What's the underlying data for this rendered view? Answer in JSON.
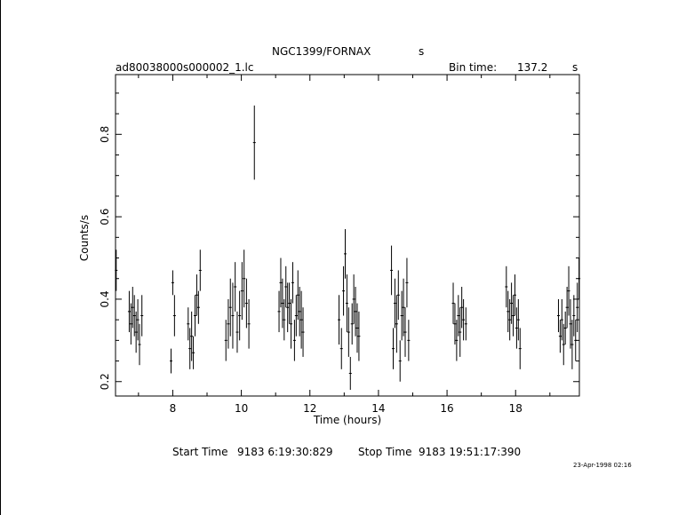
{
  "header": {
    "object": "NGC1399/FORNAX",
    "object_suffix": "s",
    "filename": "ad80038000s000002_1.lc",
    "bin_label": "Bin time:",
    "bin_value": "137.2",
    "bin_unit": "s"
  },
  "footer": {
    "start_label": "Start Time",
    "start_value": "9183  6:19:30:829",
    "stop_label": "Stop Time",
    "stop_value": "9183 19:51:17:390",
    "timestamp": "23-Apr-1998 02:16"
  },
  "chart_data": {
    "type": "scatter",
    "xlabel": "Time (hours)",
    "ylabel": "Counts/s",
    "xlim": [
      6.33,
      19.86
    ],
    "ylim": [
      0.165,
      0.945
    ],
    "xticks": [
      8,
      10,
      12,
      14,
      16,
      18
    ],
    "yticks": [
      0.2,
      0.4,
      0.6,
      0.8
    ],
    "error_bars": true,
    "series": [
      {
        "points": [
          [
            6.35,
            0.47,
            0.05
          ],
          [
            6.73,
            0.37,
            0.05
          ],
          [
            6.78,
            0.34,
            0.05
          ],
          [
            6.83,
            0.38,
            0.05
          ],
          [
            6.88,
            0.36,
            0.05
          ],
          [
            6.93,
            0.32,
            0.05
          ],
          [
            6.98,
            0.35,
            0.05
          ],
          [
            7.03,
            0.29,
            0.05
          ],
          [
            7.1,
            0.36,
            0.05
          ],
          [
            7.95,
            0.25,
            0.03
          ],
          [
            8.0,
            0.44,
            0.03
          ],
          [
            8.05,
            0.36,
            0.05
          ],
          [
            8.45,
            0.34,
            0.04
          ],
          [
            8.5,
            0.28,
            0.05
          ],
          [
            8.55,
            0.31,
            0.06
          ],
          [
            8.6,
            0.27,
            0.04
          ],
          [
            8.65,
            0.36,
            0.05
          ],
          [
            8.7,
            0.41,
            0.05
          ],
          [
            8.75,
            0.38,
            0.04
          ],
          [
            8.8,
            0.47,
            0.05
          ],
          [
            9.55,
            0.3,
            0.05
          ],
          [
            9.62,
            0.34,
            0.06
          ],
          [
            9.68,
            0.38,
            0.07
          ],
          [
            9.75,
            0.36,
            0.08
          ],
          [
            9.82,
            0.43,
            0.06
          ],
          [
            9.88,
            0.32,
            0.05
          ],
          [
            9.95,
            0.36,
            0.06
          ],
          [
            10.02,
            0.42,
            0.07
          ],
          [
            10.08,
            0.45,
            0.07
          ],
          [
            10.15,
            0.39,
            0.06
          ],
          [
            10.22,
            0.34,
            0.06
          ],
          [
            10.38,
            0.78,
            0.09
          ],
          [
            11.1,
            0.37,
            0.05
          ],
          [
            11.15,
            0.44,
            0.06
          ],
          [
            11.2,
            0.39,
            0.06
          ],
          [
            11.25,
            0.35,
            0.05
          ],
          [
            11.3,
            0.43,
            0.05
          ],
          [
            11.35,
            0.38,
            0.06
          ],
          [
            11.4,
            0.39,
            0.05
          ],
          [
            11.45,
            0.34,
            0.06
          ],
          [
            11.5,
            0.44,
            0.05
          ],
          [
            11.55,
            0.3,
            0.05
          ],
          [
            11.6,
            0.36,
            0.05
          ],
          [
            11.65,
            0.41,
            0.06
          ],
          [
            11.7,
            0.37,
            0.06
          ],
          [
            11.75,
            0.35,
            0.07
          ],
          [
            11.8,
            0.32,
            0.06
          ],
          [
            12.85,
            0.35,
            0.06
          ],
          [
            12.92,
            0.28,
            0.05
          ],
          [
            12.98,
            0.42,
            0.06
          ],
          [
            13.03,
            0.51,
            0.06
          ],
          [
            13.08,
            0.39,
            0.07
          ],
          [
            13.13,
            0.32,
            0.06
          ],
          [
            13.18,
            0.22,
            0.04
          ],
          [
            13.23,
            0.34,
            0.05
          ],
          [
            13.28,
            0.4,
            0.06
          ],
          [
            13.33,
            0.37,
            0.06
          ],
          [
            13.38,
            0.33,
            0.06
          ],
          [
            13.43,
            0.31,
            0.06
          ],
          [
            14.38,
            0.47,
            0.06
          ],
          [
            14.43,
            0.28,
            0.05
          ],
          [
            14.48,
            0.39,
            0.06
          ],
          [
            14.53,
            0.34,
            0.07
          ],
          [
            14.58,
            0.41,
            0.06
          ],
          [
            14.63,
            0.25,
            0.05
          ],
          [
            14.68,
            0.36,
            0.06
          ],
          [
            14.73,
            0.38,
            0.07
          ],
          [
            14.78,
            0.32,
            0.06
          ],
          [
            14.83,
            0.44,
            0.06
          ],
          [
            14.88,
            0.3,
            0.05
          ],
          [
            16.18,
            0.39,
            0.05
          ],
          [
            16.23,
            0.34,
            0.05
          ],
          [
            16.28,
            0.3,
            0.05
          ],
          [
            16.33,
            0.36,
            0.05
          ],
          [
            16.38,
            0.32,
            0.06
          ],
          [
            16.43,
            0.38,
            0.05
          ],
          [
            16.48,
            0.35,
            0.05
          ],
          [
            16.55,
            0.34,
            0.04
          ],
          [
            17.73,
            0.43,
            0.05
          ],
          [
            17.78,
            0.37,
            0.05
          ],
          [
            17.83,
            0.35,
            0.05
          ],
          [
            17.88,
            0.39,
            0.05
          ],
          [
            17.93,
            0.36,
            0.05
          ],
          [
            17.98,
            0.41,
            0.05
          ],
          [
            18.03,
            0.33,
            0.05
          ],
          [
            18.08,
            0.35,
            0.05
          ],
          [
            18.13,
            0.28,
            0.05
          ],
          [
            19.25,
            0.36,
            0.04
          ],
          [
            19.3,
            0.31,
            0.04
          ],
          [
            19.35,
            0.35,
            0.05
          ],
          [
            19.4,
            0.29,
            0.05
          ],
          [
            19.45,
            0.33,
            0.04
          ],
          [
            19.5,
            0.38,
            0.05
          ],
          [
            19.55,
            0.42,
            0.06
          ],
          [
            19.6,
            0.34,
            0.06
          ],
          [
            19.65,
            0.29,
            0.06
          ],
          [
            19.7,
            0.36,
            0.05
          ],
          [
            19.75,
            0.3,
            0.05
          ],
          [
            19.8,
            0.38,
            0.06
          ],
          [
            19.85,
            0.45,
            0.05
          ]
        ]
      }
    ]
  }
}
